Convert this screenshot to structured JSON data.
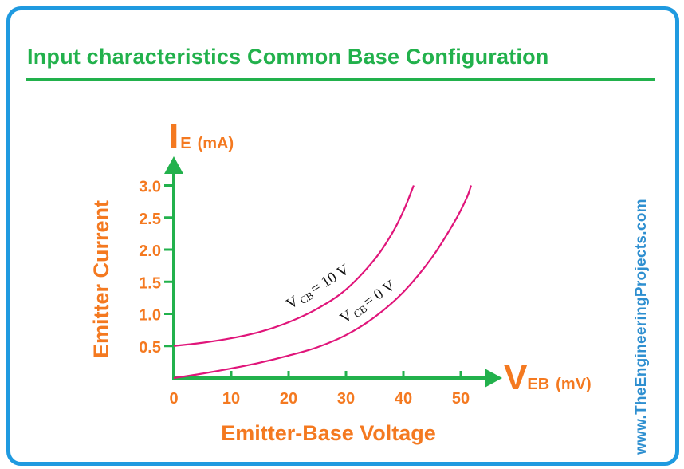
{
  "title": "Input characteristics Common Base Configuration",
  "watermark": "www.TheEngineeringProjects.com",
  "colors": {
    "title": "#22b14c",
    "axis": "#22b14c",
    "labels": "#f47920",
    "curves": "#e0157a",
    "frame": "#1f9ae0",
    "watermark": "#2e8fd0"
  },
  "chart_data": {
    "type": "line",
    "title": "Input characteristics Common Base Configuration",
    "xlabel": "Emitter-Base Voltage",
    "ylabel": "Emitter Current",
    "x_axis_symbol": {
      "main": "V",
      "sub": "EB",
      "unit": "(mV)"
    },
    "y_axis_symbol": {
      "main": "I",
      "sub": "E",
      "unit": "(mA)"
    },
    "xlim": [
      0,
      55
    ],
    "ylim": [
      0,
      3.25
    ],
    "x_ticks": [
      0,
      10,
      20,
      30,
      40,
      50
    ],
    "x_tick_labels": [
      "0",
      "10",
      "20",
      "30",
      "40",
      "50"
    ],
    "y_ticks": [
      0.5,
      1.0,
      1.5,
      2.0,
      2.5,
      3.0
    ],
    "y_tick_labels": [
      "0.5",
      "1.0",
      "1.5",
      "2.0",
      "2.5",
      "3.0"
    ],
    "grid": false,
    "series": [
      {
        "label": {
          "v": "V",
          "sub": "CB",
          "eq": "= 10 V"
        },
        "points": [
          [
            0,
            0.5
          ],
          [
            5,
            0.55
          ],
          [
            10,
            0.62
          ],
          [
            15,
            0.72
          ],
          [
            20,
            0.87
          ],
          [
            25,
            1.08
          ],
          [
            30,
            1.38
          ],
          [
            35,
            1.85
          ],
          [
            38,
            2.25
          ],
          [
            40,
            2.6
          ],
          [
            41.8,
            3.0
          ]
        ]
      },
      {
        "label": {
          "v": "V",
          "sub": "CB",
          "eq": "= 0 V"
        },
        "points": [
          [
            0,
            0.0
          ],
          [
            5,
            0.07
          ],
          [
            10,
            0.15
          ],
          [
            15,
            0.24
          ],
          [
            20,
            0.35
          ],
          [
            25,
            0.48
          ],
          [
            30,
            0.67
          ],
          [
            35,
            0.95
          ],
          [
            40,
            1.34
          ],
          [
            45,
            1.88
          ],
          [
            49,
            2.45
          ],
          [
            51,
            2.8
          ],
          [
            51.8,
            3.0
          ]
        ]
      }
    ]
  }
}
